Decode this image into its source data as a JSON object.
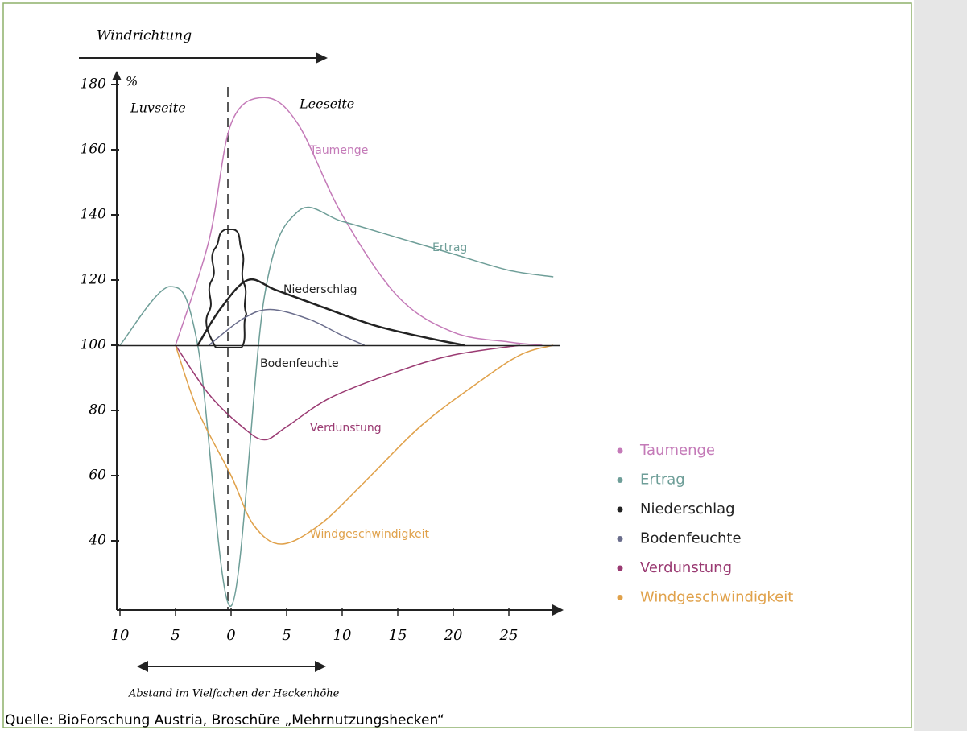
{
  "chart_data": {
    "type": "line",
    "annotations": {
      "direction": "Windrichtung",
      "unit": "%",
      "windward": "Luvseite",
      "leeward": "Leeseite",
      "x_label": "Abstand im Vielfachen der Heckenhöhe"
    },
    "source": "Quelle: BioForschung Austria, Broschüre „Mehrnutzungshecken“",
    "xlim": [
      -10,
      30
    ],
    "xticks": [
      {
        "value": -10,
        "label": "10"
      },
      {
        "value": -5,
        "label": "5"
      },
      0,
      5,
      10,
      15,
      20,
      25
    ],
    "ylim": [
      20,
      180
    ],
    "yticks": [
      40,
      60,
      80,
      100,
      120,
      140,
      160,
      180
    ],
    "series": [
      {
        "name": "Taumenge",
        "color": "#c47ab8",
        "x": [
          -5,
          -2,
          0,
          3,
          6,
          10,
          15,
          20,
          25,
          28
        ],
        "values": [
          100,
          132,
          168,
          176,
          168,
          140,
          115,
          104,
          101,
          100
        ]
      },
      {
        "name": "Ertrag",
        "color": "#6e9e98",
        "x": [
          -10,
          -5.5,
          -3,
          0,
          3,
          6,
          10,
          15,
          20,
          25,
          29
        ],
        "values": [
          100,
          118,
          100,
          20,
          115,
          141,
          138,
          133,
          128,
          123,
          121
        ]
      },
      {
        "name": "Niederschlag",
        "color": "#222222",
        "x": [
          -3,
          -1,
          1.5,
          4,
          8,
          13,
          18,
          21
        ],
        "values": [
          100,
          111,
          120,
          117,
          112,
          106,
          102,
          100
        ]
      },
      {
        "name": "Bodenfeuchte",
        "color": "#6a6d8c",
        "x": [
          -2,
          1,
          3.5,
          7,
          10,
          12
        ],
        "values": [
          100,
          108,
          111,
          108,
          103,
          100
        ]
      },
      {
        "name": "Verdunstung",
        "color": "#9a3a72",
        "x": [
          -5,
          -2,
          1,
          3,
          5,
          9,
          15,
          20,
          26
        ],
        "values": [
          100,
          85,
          75,
          71,
          75,
          84,
          92,
          97,
          100
        ]
      },
      {
        "name": "Windgeschwindigkeit",
        "color": "#e0a14a",
        "x": [
          -5,
          -3,
          0,
          2,
          4.5,
          8,
          12,
          17,
          22,
          26,
          29
        ],
        "values": [
          100,
          80,
          60,
          45,
          39,
          45,
          58,
          75,
          88,
          97,
          100
        ]
      }
    ]
  }
}
